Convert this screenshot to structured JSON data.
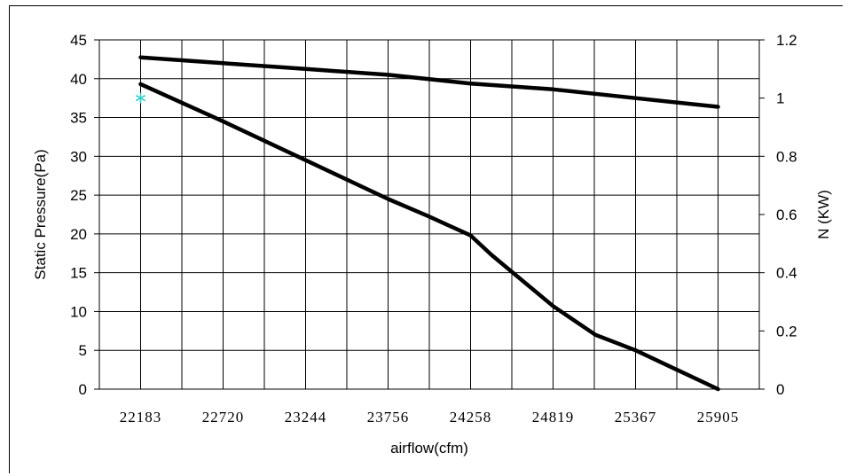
{
  "chart_data": {
    "type": "line",
    "xlabel": "airflow(cfm)",
    "ylabel": "Static Pressure(Pa)",
    "y2label": "N (KW)",
    "x_categories": [
      "22183",
      "22720",
      "23244",
      "23756",
      "24258",
      "24819",
      "25367",
      "25905"
    ],
    "ylim": [
      0,
      45
    ],
    "yticks": [
      0,
      5,
      10,
      15,
      20,
      25,
      30,
      35,
      40,
      45
    ],
    "y2lim": [
      0,
      1.2
    ],
    "y2ticks": [
      "0",
      "0.2",
      "0.4",
      "0.6",
      "0.8",
      "1",
      "1.2"
    ],
    "grid": true,
    "series": [
      {
        "axis": "left",
        "color": "#000000",
        "x": [
          22183,
          22720,
          23244,
          23756,
          24000,
          24258,
          24400,
          24819,
          25100,
          25367,
          25905
        ],
        "values": [
          39.3,
          34.5,
          29.5,
          24.5,
          22.3,
          19.8,
          17.3,
          10.7,
          7.0,
          5.0,
          0
        ]
      },
      {
        "axis": "right",
        "color": "#000000",
        "x": [
          22183,
          22720,
          23244,
          23756,
          24258,
          24819,
          25367,
          25905
        ],
        "values": [
          1.14,
          1.12,
          1.1,
          1.08,
          1.05,
          1.03,
          1.0,
          0.97
        ]
      }
    ],
    "markers": [
      {
        "symbol": "*",
        "color": "#33cccc",
        "axis": "right",
        "x": 22183,
        "value": 1.0
      }
    ]
  }
}
